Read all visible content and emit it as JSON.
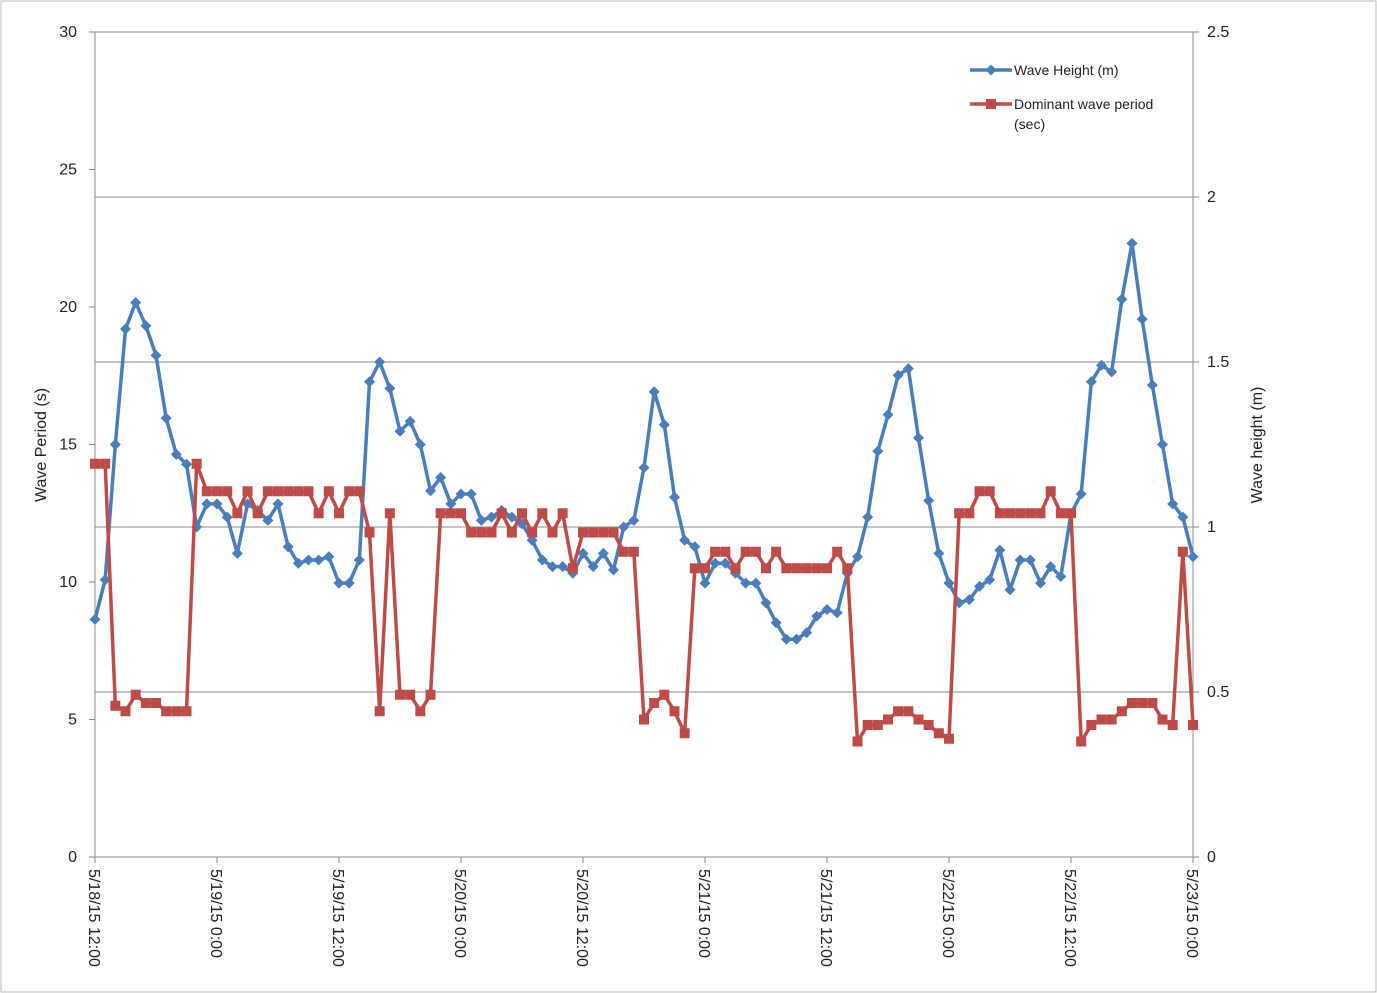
{
  "chart_data": {
    "type": "line",
    "y_label": "Wave Period (s)",
    "y2_label": "Wave height (m)",
    "x": [
      "5/18/15 12:00",
      "5/18/15 13:00",
      "5/18/15 14:00",
      "5/18/15 15:00",
      "5/18/15 16:00",
      "5/18/15 17:00",
      "5/18/15 18:00",
      "5/18/15 19:00",
      "5/18/15 20:00",
      "5/18/15 21:00",
      "5/18/15 22:00",
      "5/18/15 23:00",
      "5/19/15 0:00",
      "5/19/15 1:00",
      "5/19/15 2:00",
      "5/19/15 3:00",
      "5/19/15 4:00",
      "5/19/15 5:00",
      "5/19/15 6:00",
      "5/19/15 7:00",
      "5/19/15 8:00",
      "5/19/15 9:00",
      "5/19/15 10:00",
      "5/19/15 11:00",
      "5/19/15 12:00",
      "5/19/15 13:00",
      "5/19/15 14:00",
      "5/19/15 15:00",
      "5/19/15 16:00",
      "5/19/15 17:00",
      "5/19/15 18:00",
      "5/19/15 19:00",
      "5/19/15 20:00",
      "5/19/15 21:00",
      "5/19/15 22:00",
      "5/19/15 23:00",
      "5/20/15 0:00",
      "5/20/15 1:00",
      "5/20/15 2:00",
      "5/20/15 3:00",
      "5/20/15 4:00",
      "5/20/15 5:00",
      "5/20/15 6:00",
      "5/20/15 7:00",
      "5/20/15 8:00",
      "5/20/15 9:00",
      "5/20/15 10:00",
      "5/20/15 11:00",
      "5/20/15 12:00",
      "5/20/15 13:00",
      "5/20/15 14:00",
      "5/20/15 15:00",
      "5/20/15 16:00",
      "5/20/15 17:00",
      "5/20/15 18:00",
      "5/20/15 19:00",
      "5/20/15 20:00",
      "5/20/15 21:00",
      "5/20/15 22:00",
      "5/20/15 23:00",
      "5/21/15 0:00",
      "5/21/15 1:00",
      "5/21/15 2:00",
      "5/21/15 3:00",
      "5/21/15 4:00",
      "5/21/15 5:00",
      "5/21/15 6:00",
      "5/21/15 7:00",
      "5/21/15 8:00",
      "5/21/15 9:00",
      "5/21/15 10:00",
      "5/21/15 11:00",
      "5/21/15 12:00",
      "5/21/15 13:00",
      "5/21/15 14:00",
      "5/21/15 15:00",
      "5/21/15 16:00",
      "5/21/15 17:00",
      "5/21/15 18:00",
      "5/21/15 19:00",
      "5/21/15 20:00",
      "5/21/15 21:00",
      "5/21/15 22:00",
      "5/21/15 23:00",
      "5/22/15 0:00",
      "5/22/15 1:00",
      "5/22/15 2:00",
      "5/22/15 3:00",
      "5/22/15 4:00",
      "5/22/15 5:00",
      "5/22/15 6:00",
      "5/22/15 7:00",
      "5/22/15 8:00",
      "5/22/15 9:00",
      "5/22/15 10:00",
      "5/22/15 11:00",
      "5/22/15 12:00",
      "5/22/15 13:00",
      "5/22/15 14:00",
      "5/22/15 15:00",
      "5/22/15 16:00",
      "5/22/15 17:00",
      "5/22/15 18:00",
      "5/22/15 19:00",
      "5/22/15 20:00",
      "5/22/15 21:00",
      "5/22/15 22:00",
      "5/22/15 23:00",
      "5/23/15 0:00"
    ],
    "series": [
      {
        "name": "Wave Height (m)",
        "color": "#4a7ebb",
        "marker": "diamond",
        "axis": "y2",
        "values": [
          0.72,
          0.84,
          1.25,
          1.6,
          1.68,
          1.61,
          1.52,
          1.33,
          1.22,
          1.19,
          1.0,
          1.07,
          1.07,
          1.03,
          0.92,
          1.07,
          1.05,
          1.02,
          1.07,
          0.94,
          0.89,
          0.9,
          0.9,
          0.91,
          0.83,
          0.83,
          0.9,
          1.44,
          1.5,
          1.42,
          1.29,
          1.32,
          1.25,
          1.11,
          1.15,
          1.07,
          1.1,
          1.1,
          1.02,
          1.03,
          1.05,
          1.03,
          1.01,
          0.96,
          0.9,
          0.88,
          0.88,
          0.86,
          0.92,
          0.88,
          0.92,
          0.87,
          1.0,
          1.02,
          1.18,
          1.41,
          1.31,
          1.09,
          0.96,
          0.94,
          0.83,
          0.89,
          0.89,
          0.86,
          0.83,
          0.83,
          0.77,
          0.71,
          0.66,
          0.66,
          0.68,
          0.73,
          0.75,
          0.74,
          0.86,
          0.91,
          1.03,
          1.23,
          1.34,
          1.46,
          1.48,
          1.27,
          1.08,
          0.92,
          0.83,
          0.77,
          0.78,
          0.82,
          0.84,
          0.93,
          0.81,
          0.9,
          0.9,
          0.83,
          0.88,
          0.85,
          1.04,
          1.1,
          1.44,
          1.49,
          1.47,
          1.69,
          1.86,
          1.63,
          1.43,
          1.25,
          1.07,
          1.03,
          0.91
        ]
      },
      {
        "name": "Dominant wave period (sec)",
        "color": "#be4b48",
        "marker": "square",
        "values": [
          14.3,
          14.3,
          5.5,
          5.3,
          5.9,
          5.6,
          5.6,
          5.3,
          5.3,
          5.3,
          14.3,
          13.3,
          13.3,
          13.3,
          12.5,
          13.3,
          12.5,
          13.3,
          13.3,
          13.3,
          13.3,
          13.3,
          12.5,
          13.3,
          12.5,
          13.3,
          13.3,
          11.8,
          5.3,
          12.5,
          5.9,
          5.9,
          5.3,
          5.9,
          12.5,
          12.5,
          12.5,
          11.8,
          11.8,
          11.8,
          12.5,
          11.8,
          12.5,
          11.8,
          12.5,
          11.8,
          12.5,
          10.5,
          11.8,
          11.8,
          11.8,
          11.8,
          11.1,
          11.1,
          5.0,
          5.6,
          5.9,
          5.3,
          4.5,
          10.5,
          10.5,
          11.1,
          11.1,
          10.5,
          11.1,
          11.1,
          10.5,
          11.1,
          10.5,
          10.5,
          10.5,
          10.5,
          10.5,
          11.1,
          10.5,
          4.2,
          4.8,
          4.8,
          5.0,
          5.3,
          5.3,
          5.0,
          4.8,
          4.5,
          4.3,
          12.5,
          12.5,
          13.3,
          13.3,
          12.5,
          12.5,
          12.5,
          12.5,
          12.5,
          13.3,
          12.5,
          12.5,
          4.2,
          4.8,
          5.0,
          5.0,
          5.3,
          5.6,
          5.6,
          5.6,
          5.0,
          4.8,
          11.1,
          4.8
        ]
      }
    ],
    "xlim": [
      "5/18/15 12:00",
      "5/23/15 0:00"
    ],
    "xticks": [
      "5/18/15 12:00",
      "5/19/15 0:00",
      "5/19/15 12:00",
      "5/20/15 0:00",
      "5/20/15 12:00",
      "5/21/15 0:00",
      "5/21/15 12:00",
      "5/22/15 0:00",
      "5/22/15 12:00",
      "5/23/15 0:00"
    ],
    "ylim": [
      0,
      30
    ],
    "yticks": [
      0,
      5,
      10,
      15,
      20,
      25,
      30
    ],
    "y2lim": [
      0,
      2.5
    ],
    "y2ticks": [
      0,
      0.5,
      1,
      1.5,
      2,
      2.5
    ],
    "grid": "y2"
  }
}
